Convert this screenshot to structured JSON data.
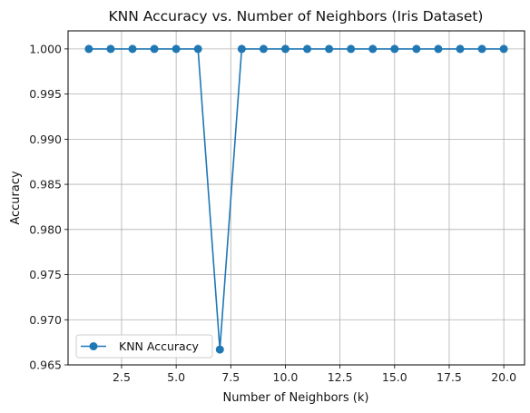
{
  "chart_data": {
    "type": "line",
    "title": "KNN Accuracy vs. Number of Neighbors (Iris Dataset)",
    "xlabel": "Number of Neighbors (k)",
    "ylabel": "Accuracy",
    "xlim": [
      0.05,
      20.95
    ],
    "ylim": [
      0.965,
      1.002
    ],
    "xticks": [
      2.5,
      5.0,
      7.5,
      10.0,
      12.5,
      15.0,
      17.5,
      20.0
    ],
    "xtick_labels": [
      "2.5",
      "5.0",
      "7.5",
      "10.0",
      "12.5",
      "15.0",
      "17.5",
      "20.0"
    ],
    "yticks": [
      0.965,
      0.97,
      0.975,
      0.98,
      0.985,
      0.99,
      0.995,
      1.0
    ],
    "ytick_labels": [
      "0.965",
      "0.970",
      "0.975",
      "0.980",
      "0.985",
      "0.990",
      "0.995",
      "1.000"
    ],
    "grid": true,
    "legend_position": "lower-left",
    "series": [
      {
        "name": "KNN Accuracy",
        "color": "#1f77b4",
        "marker": "circle",
        "x": [
          1,
          2,
          3,
          4,
          5,
          6,
          7,
          8,
          9,
          10,
          11,
          12,
          13,
          14,
          15,
          16,
          17,
          18,
          19,
          20
        ],
        "y": [
          1.0,
          1.0,
          1.0,
          1.0,
          1.0,
          1.0,
          0.9667,
          1.0,
          1.0,
          1.0,
          1.0,
          1.0,
          1.0,
          1.0,
          1.0,
          1.0,
          1.0,
          1.0,
          1.0,
          1.0
        ]
      }
    ]
  }
}
